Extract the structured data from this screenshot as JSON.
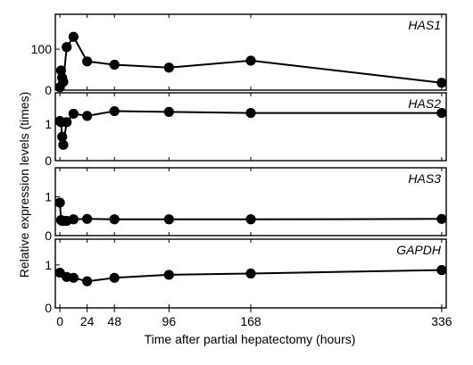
{
  "chart_data": {
    "type": "line",
    "xlabel": "Time after partial hepatectomy (hours)",
    "ylabel": "Relative expression levels (times)",
    "x_ticks": [
      0,
      24,
      48,
      96,
      168,
      336
    ],
    "xlim": [
      -4,
      340
    ],
    "panels": [
      {
        "name": "HAS1",
        "ylim": [
          0,
          185
        ],
        "y_ticks": [
          0,
          100
        ],
        "x": [
          0,
          1,
          2,
          3,
          6,
          12,
          24,
          48,
          96,
          168,
          336
        ],
        "values": [
          7,
          48,
          30,
          20,
          105,
          130,
          70,
          62,
          55,
          72,
          18
        ]
      },
      {
        "name": "HAS2",
        "ylim": [
          0,
          1.85
        ],
        "y_ticks": [
          0,
          1
        ],
        "x": [
          0,
          1,
          2,
          3,
          6,
          12,
          24,
          48,
          96,
          168,
          336
        ],
        "values": [
          1.08,
          1.05,
          0.65,
          0.43,
          1.05,
          1.28,
          1.22,
          1.35,
          1.33,
          1.3,
          1.3
        ]
      },
      {
        "name": "HAS3",
        "ylim": [
          0,
          1.75
        ],
        "y_ticks": [
          0,
          1
        ],
        "x": [
          0,
          1,
          2,
          3,
          6,
          12,
          24,
          48,
          96,
          168,
          336
        ],
        "values": [
          0.85,
          0.4,
          0.38,
          0.38,
          0.38,
          0.42,
          0.43,
          0.42,
          0.42,
          0.42,
          0.43
        ]
      },
      {
        "name": "GAPDH",
        "ylim": [
          0,
          1.6
        ],
        "y_ticks": [
          0,
          1
        ],
        "x": [
          0,
          6,
          12,
          24,
          48,
          96,
          168,
          336
        ],
        "values": [
          0.82,
          0.72,
          0.7,
          0.62,
          0.7,
          0.77,
          0.8,
          0.88
        ]
      }
    ]
  }
}
